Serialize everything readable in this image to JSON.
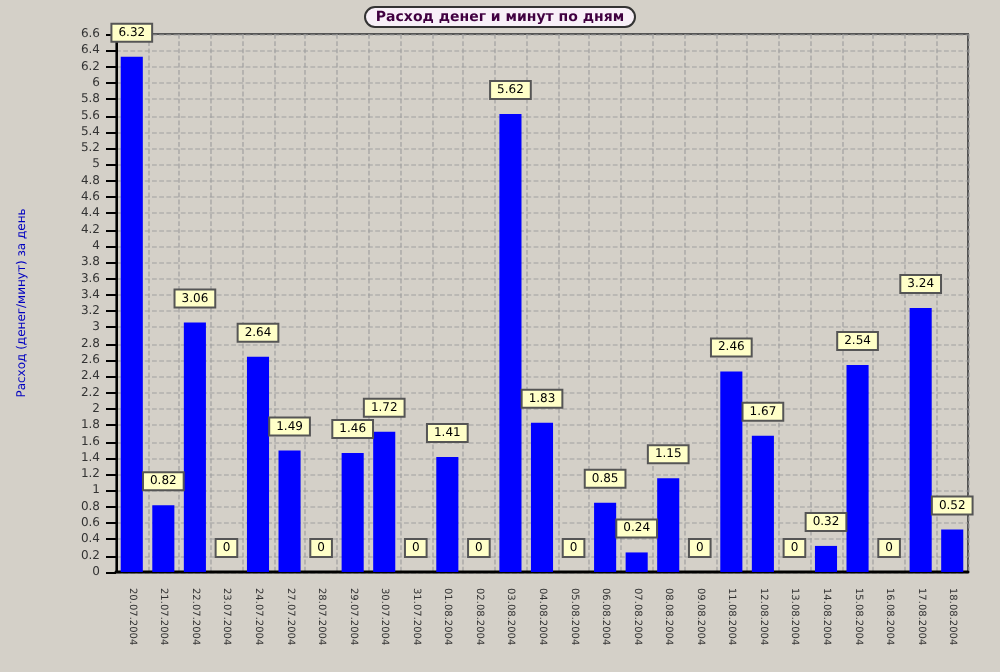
{
  "chart_data": {
    "type": "bar",
    "title": "Расход денег и минут по дням",
    "ylabel": "Расход (денег/минут) за день",
    "categories": [
      "20.07.2004",
      "21.07.2004",
      "22.07.2004",
      "23.07.2004",
      "24.07.2004",
      "27.07.2004",
      "28.07.2004",
      "29.07.2004",
      "30.07.2004",
      "31.07.2004",
      "01.08.2004",
      "02.08.2004",
      "03.08.2004",
      "04.08.2004",
      "05.08.2004",
      "06.08.2004",
      "07.08.2004",
      "08.08.2004",
      "09.08.2004",
      "11.08.2004",
      "12.08.2004",
      "13.08.2004",
      "14.08.2004",
      "15.08.2004",
      "16.08.2004",
      "17.08.2004",
      "18.08.2004"
    ],
    "values": [
      6.32,
      0.82,
      3.06,
      0,
      2.64,
      1.49,
      0,
      1.46,
      1.72,
      0,
      1.41,
      0,
      5.62,
      1.83,
      0,
      0.85,
      0.24,
      1.15,
      0,
      2.46,
      1.67,
      0,
      0.32,
      2.54,
      0,
      3.24,
      0.52
    ],
    "color": "#0000ff",
    "data_labels": true,
    "grid": true,
    "ylim": [
      0,
      6.6
    ],
    "yticks": [
      0,
      0.2,
      0.4,
      0.6,
      0.8,
      1,
      1.2,
      1.4,
      1.6,
      1.8,
      2,
      2.2,
      2.4,
      2.6,
      2.8,
      3,
      3.2,
      3.4,
      3.6,
      3.8,
      4,
      4.2,
      4.4,
      4.6,
      4.8,
      5,
      5.2,
      5.4,
      5.6,
      5.8,
      6,
      6.2,
      6.4,
      6.6
    ]
  }
}
